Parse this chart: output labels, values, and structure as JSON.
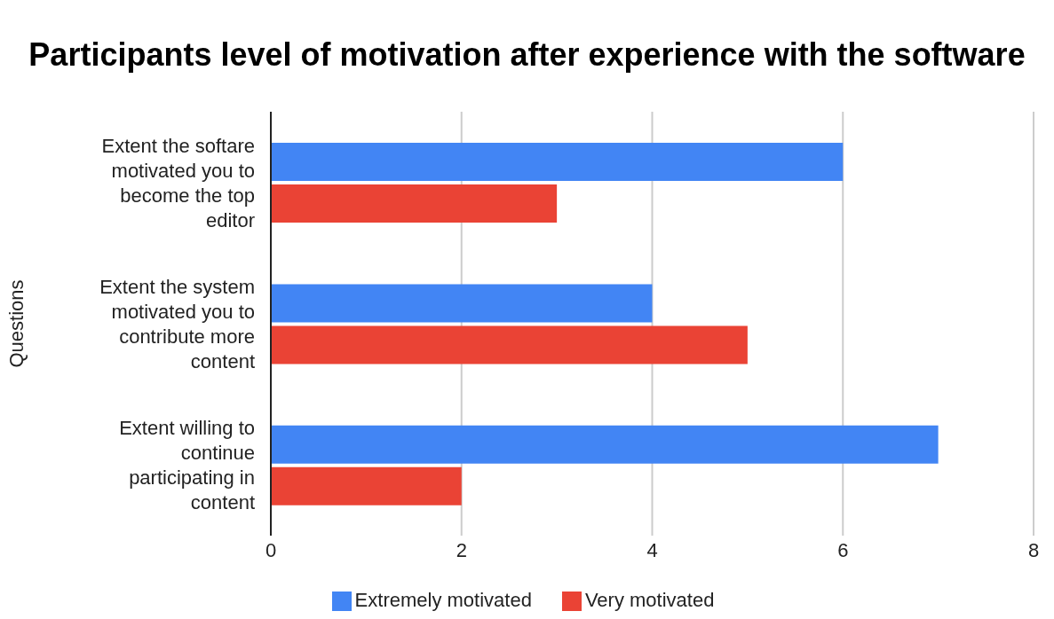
{
  "chart_data": {
    "type": "bar",
    "orientation": "horizontal",
    "title": "Participants level of motivation after experience with the software",
    "ylabel": "Questions",
    "categories": [
      "Extent the softare motivated you to become the top editor",
      "Extent the system motivated you to contribute more content",
      "Extent willing to continue participating in content"
    ],
    "series": [
      {
        "name": "Extremely motivated",
        "color": "#4285f4",
        "values": [
          6,
          4,
          7
        ]
      },
      {
        "name": "Very motivated",
        "color": "#ea4335",
        "values": [
          3,
          5,
          2
        ]
      }
    ],
    "xlim": [
      0,
      8
    ],
    "xticks": [
      0,
      2,
      4,
      6,
      8
    ],
    "grid": "x",
    "legend": "bottom"
  }
}
